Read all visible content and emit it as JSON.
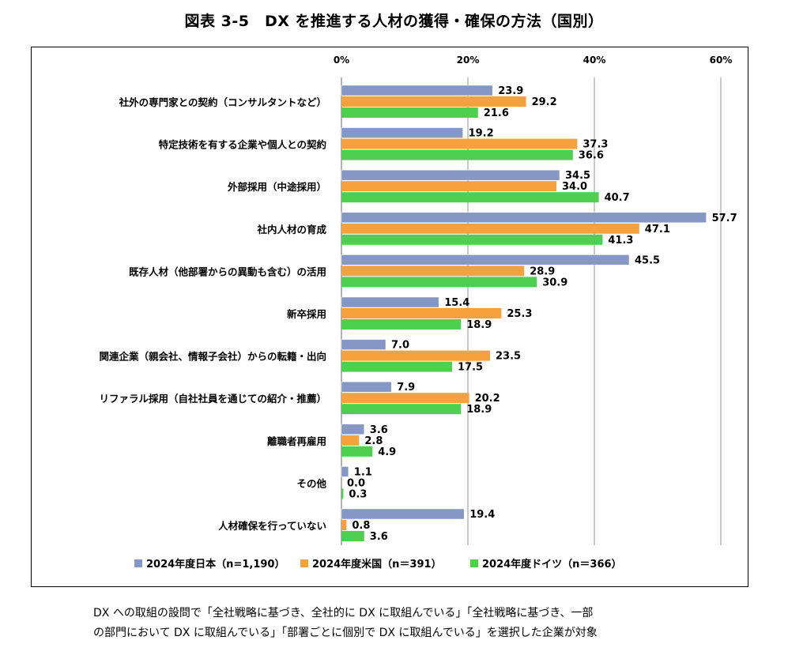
{
  "title": "図表 3-5　DX を推進する人材の獲得・確保の方法（国別）",
  "note": {
    "line1": "DX への取組の設問で「全社戦略に基づき、全社的に DX に取組んでいる」「全社戦略に基づき、一部",
    "line2": "の部門において DX に取組んでいる」「部署ごとに個別で DX に取組んでいる」を選択した企業が対象"
  },
  "colors": {
    "japan": "#8497c5",
    "usa": "#f5a23e",
    "germany": "#4fcf4f",
    "grid": "#a6a6a6"
  },
  "chart_data": {
    "type": "bar",
    "orientation": "horizontal",
    "title": "図表 3-5　DX を推進する人材の獲得・確保の方法（国別）",
    "xlim": [
      0,
      60
    ],
    "x_ticks": [
      "0%",
      "20%",
      "40%",
      "60%"
    ],
    "legend_position": "bottom",
    "categories": [
      "社外の専門家との契約（コンサルタントなど）",
      "特定技術を有する企業や個人との契約",
      "外部採用（中途採用）",
      "社内人材の育成",
      "既存人材（他部署からの異動も含む）の活用",
      "新卒採用",
      "関連企業（親会社、情報子会社）からの転籍・出向",
      "リファラル採用（自社社員を通じての紹介・推薦）",
      "離職者再雇用",
      "その他",
      "人材確保を行っていない"
    ],
    "series": [
      {
        "name": "2024年度日本（n=1,190）",
        "values": [
          23.9,
          19.2,
          34.5,
          57.7,
          45.5,
          15.4,
          7.0,
          7.9,
          3.6,
          1.1,
          19.4
        ]
      },
      {
        "name": "2024年度米国（n＝391）",
        "values": [
          29.2,
          37.3,
          34.0,
          47.1,
          28.9,
          25.3,
          23.5,
          20.2,
          2.8,
          0.0,
          0.8
        ]
      },
      {
        "name": "2024年度ドイツ（n＝366）",
        "values": [
          21.6,
          36.6,
          40.7,
          41.3,
          30.9,
          18.9,
          17.5,
          18.9,
          4.9,
          0.3,
          3.6
        ]
      }
    ]
  }
}
